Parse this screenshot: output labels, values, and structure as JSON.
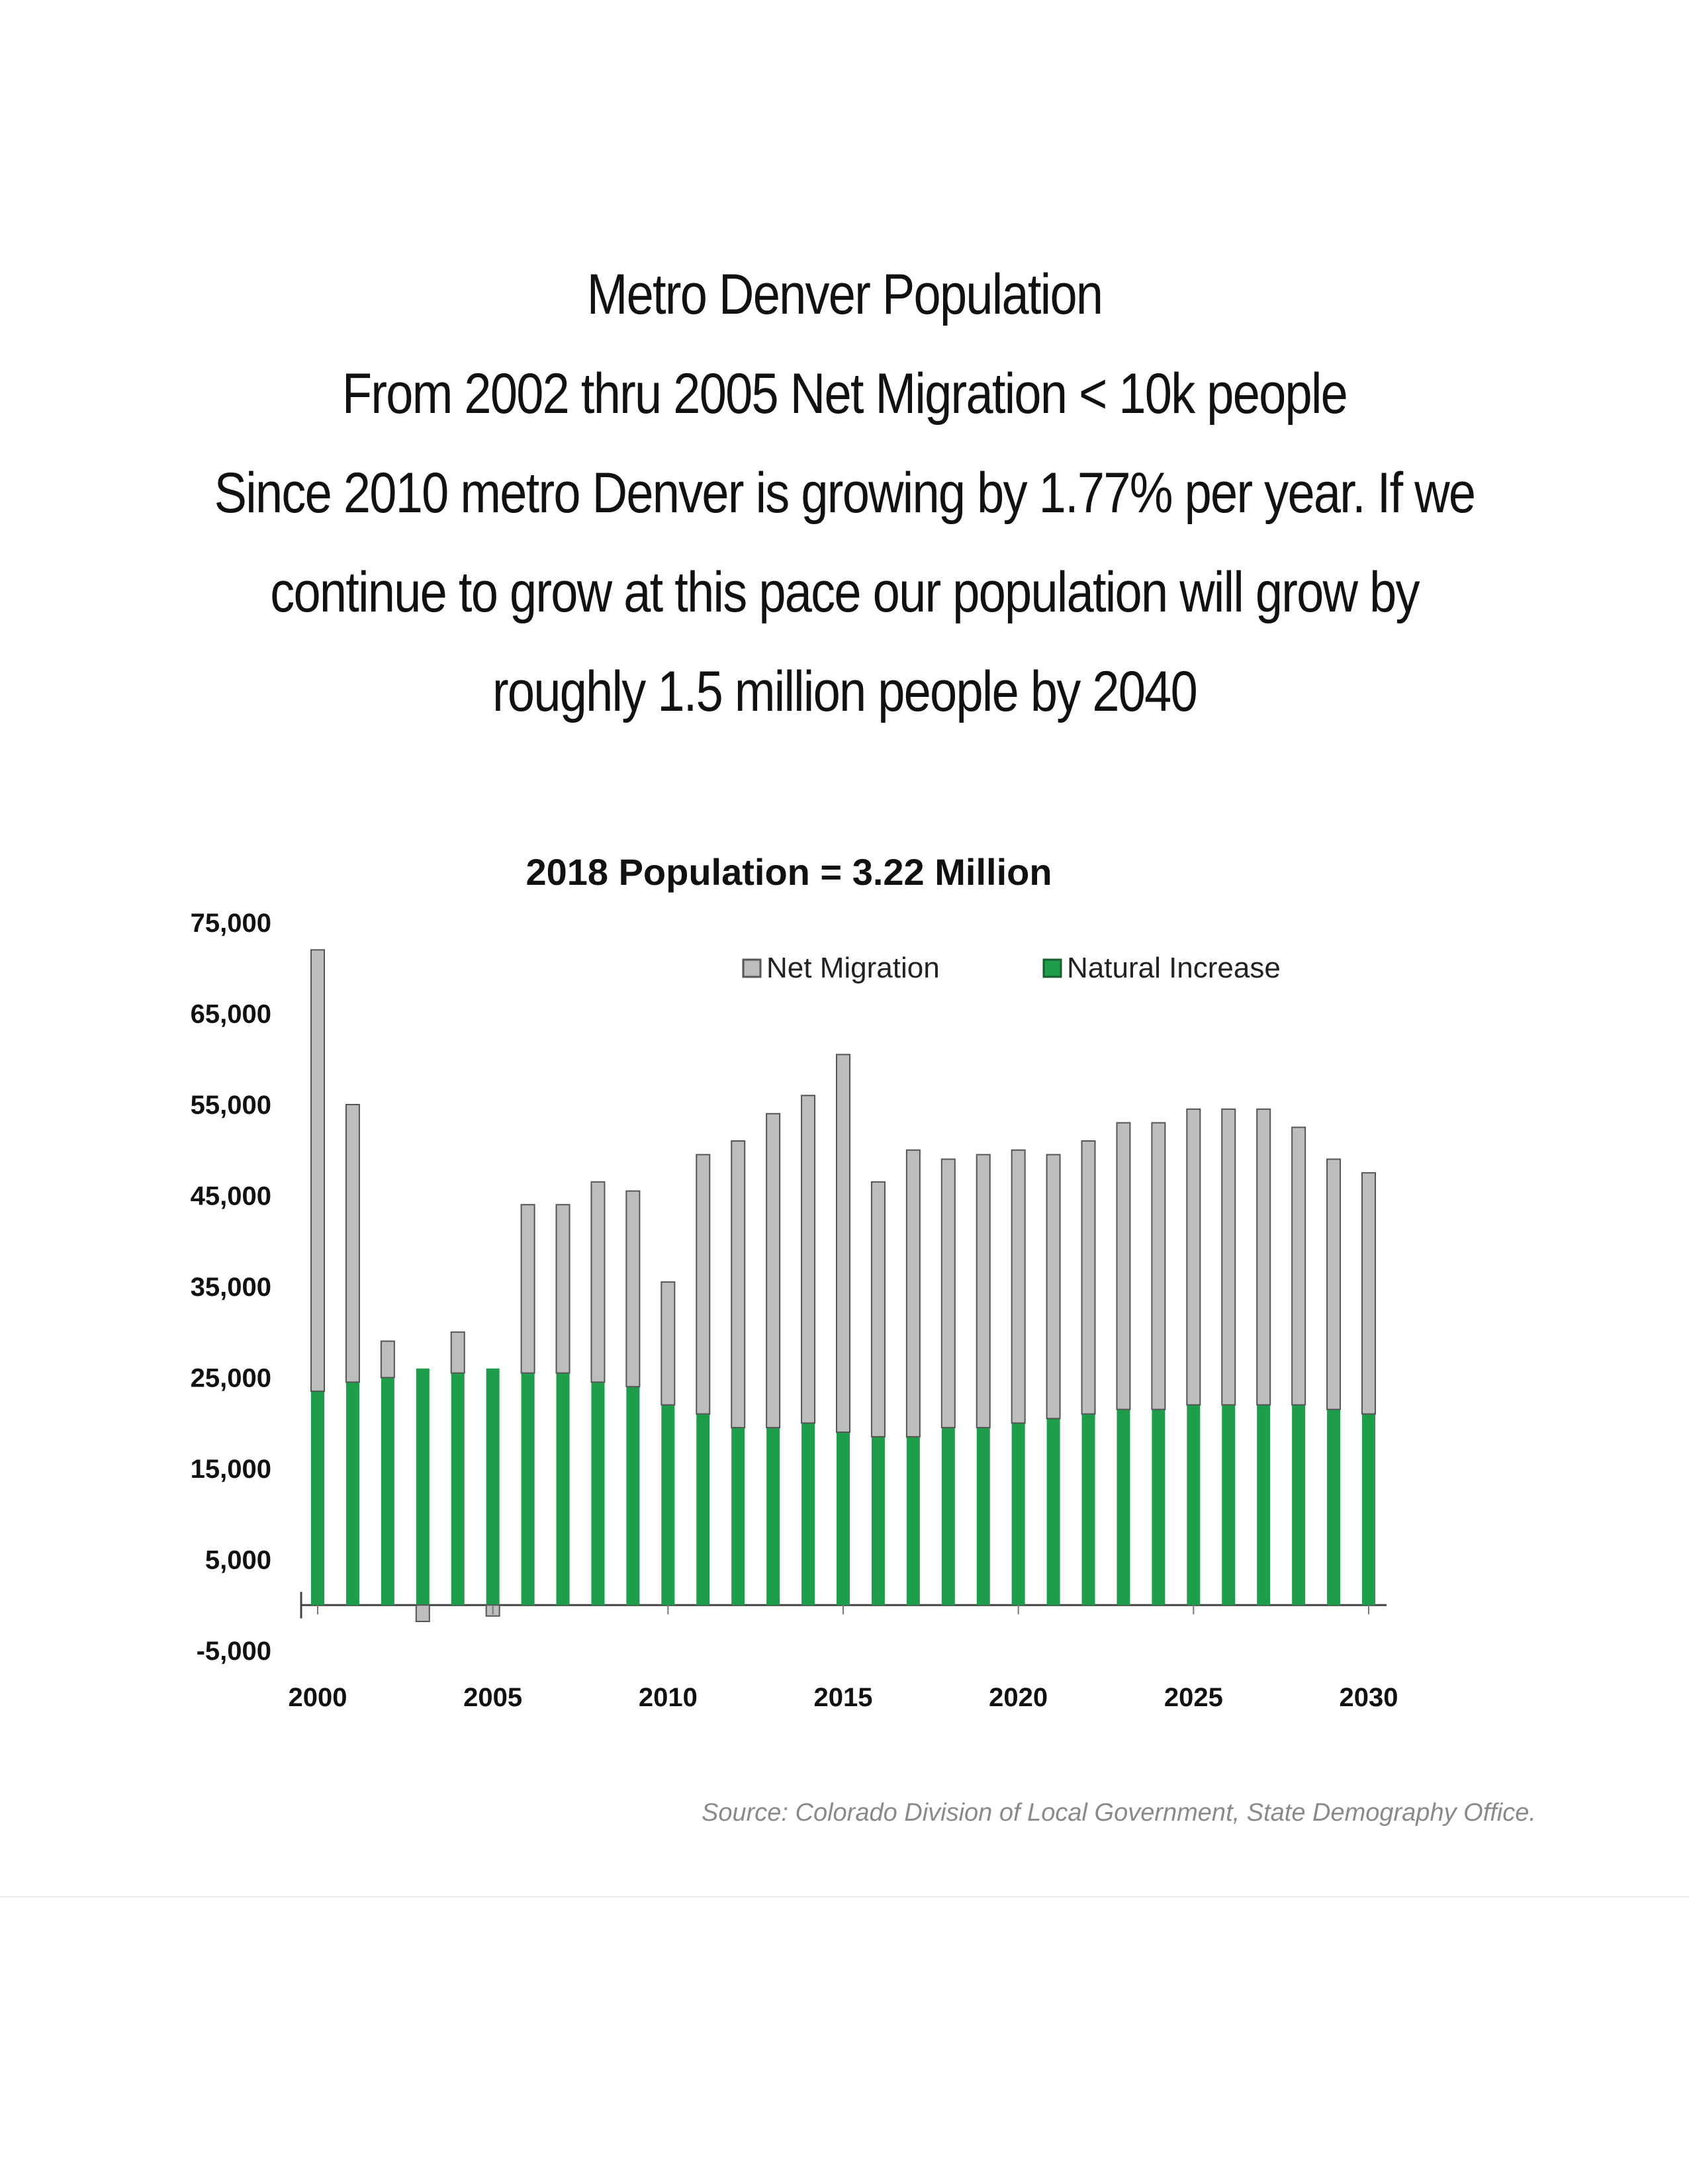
{
  "heading": {
    "line1": "Metro Denver Population",
    "line2": "From 2002 thru 2005 Net Migration < 10k people",
    "line3": "Since 2010 metro Denver is growing by  1.77% per year. If we",
    "line4": "continue to grow at this pace our population will grow by",
    "line5": "roughly 1.5 million people by 2040"
  },
  "source": "Source: Colorado Division of Local Government, State Demography Office.",
  "colors": {
    "net_migration": "#bdbdbd",
    "natural_increase": "#1e9e4a",
    "bar_outline": "#555555"
  },
  "chart_data": {
    "type": "bar",
    "stacked": true,
    "title": "2018 Population = 3.22 Million",
    "xlabel": "",
    "ylabel": "",
    "x": [
      2000,
      2001,
      2002,
      2003,
      2004,
      2005,
      2006,
      2007,
      2008,
      2009,
      2010,
      2011,
      2012,
      2013,
      2014,
      2015,
      2016,
      2017,
      2018,
      2019,
      2020,
      2021,
      2022,
      2023,
      2024,
      2025,
      2026,
      2027,
      2028,
      2029,
      2030
    ],
    "x_ticks": [
      "2000",
      "2005",
      "2010",
      "2015",
      "2020",
      "2025",
      "2030"
    ],
    "y_ticks": [
      "75,000",
      "65,000",
      "55,000",
      "45,000",
      "35,000",
      "25,000",
      "15,000",
      "5,000",
      "-5,000"
    ],
    "ylim": [
      -5000,
      75000
    ],
    "legend_position": "top",
    "series": [
      {
        "name": "Net Migration",
        "values": [
          48500,
          30500,
          4000,
          -1800,
          4500,
          -1200,
          18500,
          18500,
          22000,
          21500,
          13500,
          28500,
          31500,
          34500,
          36000,
          41500,
          28000,
          31500,
          29500,
          30000,
          30000,
          29000,
          30000,
          31500,
          31500,
          32500,
          32500,
          32500,
          30500,
          27500,
          26500
        ]
      },
      {
        "name": "Natural Increase",
        "values": [
          23500,
          24500,
          25000,
          26000,
          25500,
          26000,
          25500,
          25500,
          24500,
          24000,
          22000,
          21000,
          19500,
          19500,
          20000,
          19000,
          18500,
          18500,
          19500,
          19500,
          20000,
          20500,
          21000,
          21500,
          21500,
          22000,
          22000,
          22000,
          22000,
          21500,
          21000
        ]
      }
    ]
  }
}
